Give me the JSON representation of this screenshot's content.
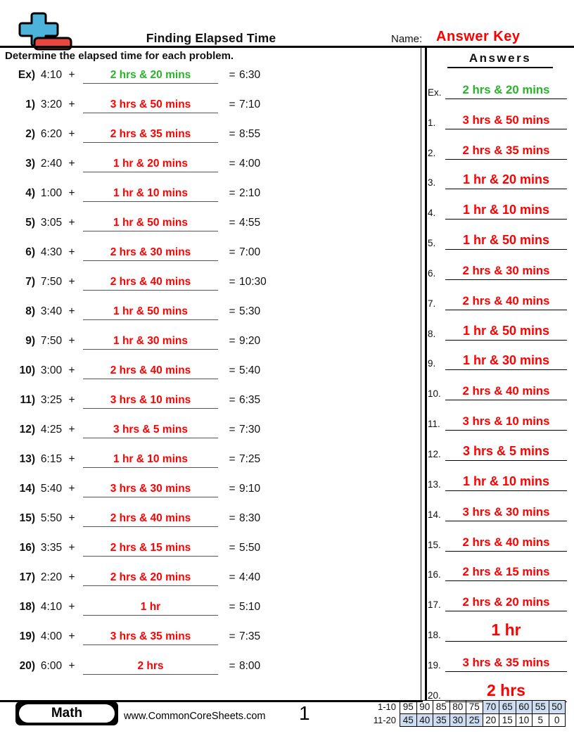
{
  "header": {
    "title": "Finding Elapsed Time",
    "name_label": "Name:",
    "name_value": "Answer Key",
    "instruction": "Determine the elapsed time for each problem."
  },
  "answers_panel": {
    "title": "Answers"
  },
  "operators": {
    "plus": "+",
    "equals": "="
  },
  "problems": [
    {
      "num": "Ex)",
      "ans_num": "Ex.",
      "start": "4:10",
      "elapsed": "2 hrs & 20 mins",
      "end": "6:30",
      "highlight": "green"
    },
    {
      "num": "1)",
      "ans_num": "1.",
      "start": "3:20",
      "elapsed": "3 hrs & 50 mins",
      "end": "7:10",
      "highlight": "red"
    },
    {
      "num": "2)",
      "ans_num": "2.",
      "start": "6:20",
      "elapsed": "2 hrs & 35 mins",
      "end": "8:55",
      "highlight": "red"
    },
    {
      "num": "3)",
      "ans_num": "3.",
      "start": "2:40",
      "elapsed": "1 hr & 20 mins",
      "end": "4:00",
      "highlight": "red"
    },
    {
      "num": "4)",
      "ans_num": "4.",
      "start": "1:00",
      "elapsed": "1 hr & 10 mins",
      "end": "2:10",
      "highlight": "red"
    },
    {
      "num": "5)",
      "ans_num": "5.",
      "start": "3:05",
      "elapsed": "1 hr & 50 mins",
      "end": "4:55",
      "highlight": "red"
    },
    {
      "num": "6)",
      "ans_num": "6.",
      "start": "4:30",
      "elapsed": "2 hrs & 30 mins",
      "end": "7:00",
      "highlight": "red"
    },
    {
      "num": "7)",
      "ans_num": "7.",
      "start": "7:50",
      "elapsed": "2 hrs & 40 mins",
      "end": "10:30",
      "highlight": "red"
    },
    {
      "num": "8)",
      "ans_num": "8.",
      "start": "3:40",
      "elapsed": "1 hr & 50 mins",
      "end": "5:30",
      "highlight": "red"
    },
    {
      "num": "9)",
      "ans_num": "9.",
      "start": "7:50",
      "elapsed": "1 hr & 30 mins",
      "end": "9:20",
      "highlight": "red"
    },
    {
      "num": "10)",
      "ans_num": "10.",
      "start": "3:00",
      "elapsed": "2 hrs & 40 mins",
      "end": "5:40",
      "highlight": "red"
    },
    {
      "num": "11)",
      "ans_num": "11.",
      "start": "3:25",
      "elapsed": "3 hrs & 10 mins",
      "end": "6:35",
      "highlight": "red"
    },
    {
      "num": "12)",
      "ans_num": "12.",
      "start": "4:25",
      "elapsed": "3 hrs & 5 mins",
      "end": "7:30",
      "highlight": "red"
    },
    {
      "num": "13)",
      "ans_num": "13.",
      "start": "6:15",
      "elapsed": "1 hr & 10 mins",
      "end": "7:25",
      "highlight": "red"
    },
    {
      "num": "14)",
      "ans_num": "14.",
      "start": "5:40",
      "elapsed": "3 hrs & 30 mins",
      "end": "9:10",
      "highlight": "red"
    },
    {
      "num": "15)",
      "ans_num": "15.",
      "start": "5:50",
      "elapsed": "2 hrs & 40 mins",
      "end": "8:30",
      "highlight": "red"
    },
    {
      "num": "16)",
      "ans_num": "16.",
      "start": "3:35",
      "elapsed": "2 hrs & 15 mins",
      "end": "5:50",
      "highlight": "red"
    },
    {
      "num": "17)",
      "ans_num": "17.",
      "start": "2:20",
      "elapsed": "2 hrs & 20 mins",
      "end": "4:40",
      "highlight": "red"
    },
    {
      "num": "18)",
      "ans_num": "18.",
      "start": "4:10",
      "elapsed": "1 hr",
      "end": "5:10",
      "highlight": "red"
    },
    {
      "num": "19)",
      "ans_num": "19.",
      "start": "4:00",
      "elapsed": "3 hrs & 35 mins",
      "end": "7:35",
      "highlight": "red"
    },
    {
      "num": "20)",
      "ans_num": "20.",
      "start": "6:00",
      "elapsed": "2 hrs",
      "end": "8:00",
      "highlight": "red"
    }
  ],
  "footer": {
    "subject_badge": "Math",
    "website": "www.CommonCoreSheets.com",
    "page_number": "1"
  },
  "score_table": {
    "row_labels": [
      "1-10",
      "11-20"
    ],
    "rows": [
      [
        95,
        90,
        85,
        80,
        75,
        70,
        65,
        60,
        55,
        50
      ],
      [
        45,
        40,
        35,
        30,
        25,
        20,
        15,
        10,
        5,
        0
      ]
    ],
    "shaded": [
      [
        0,
        0,
        0,
        0,
        0,
        1,
        1,
        1,
        1,
        1
      ],
      [
        1,
        1,
        1,
        1,
        1,
        0,
        0,
        0,
        0,
        0
      ]
    ]
  },
  "colors": {
    "answer_red": "#ff0000",
    "example_green": "#28b428",
    "table_shade": "#cdddf2",
    "logo_blue": "#4db3da",
    "logo_red": "#e8463f"
  }
}
